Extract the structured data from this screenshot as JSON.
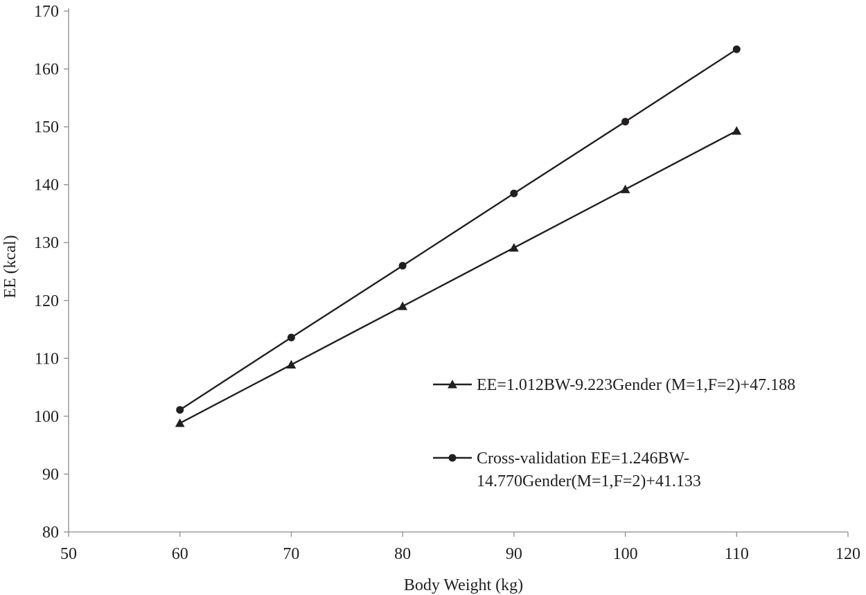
{
  "chart_data": {
    "type": "line",
    "title": "",
    "xlabel": "Body Weight (kg)",
    "ylabel": "EE (kcal)",
    "xlim": [
      50,
      120
    ],
    "ylim": [
      80,
      170
    ],
    "x_ticks": [
      "50",
      "60",
      "70",
      "80",
      "90",
      "100",
      "110",
      "120"
    ],
    "y_ticks": [
      "80",
      "90",
      "100",
      "110",
      "120",
      "130",
      "140",
      "150",
      "160",
      "170"
    ],
    "grid": false,
    "legend_position": "right",
    "x": [
      60,
      70,
      80,
      90,
      100,
      110
    ],
    "series": [
      {
        "name": "EE=1.012BW-9.223Gender (M=1,F=2)+47.188",
        "name_lines": [
          "EE=1.012BW-9.223Gender (M=1,F=2)+47.188"
        ],
        "marker": "triangle",
        "values": [
          98.8,
          108.9,
          119.0,
          129.1,
          139.2,
          149.3
        ]
      },
      {
        "name": "Cross-validation EE=1.246BW-14.770Gender(M=1,F=2)+41.133",
        "name_lines": [
          "Cross-validation EE=1.246BW-",
          "14.770Gender(M=1,F=2)+41.133"
        ],
        "marker": "circle",
        "values": [
          101.1,
          113.6,
          126.0,
          138.5,
          150.9,
          163.4
        ]
      }
    ],
    "colors": {
      "line": "#231f20",
      "axis": "#8c8c8c"
    }
  }
}
